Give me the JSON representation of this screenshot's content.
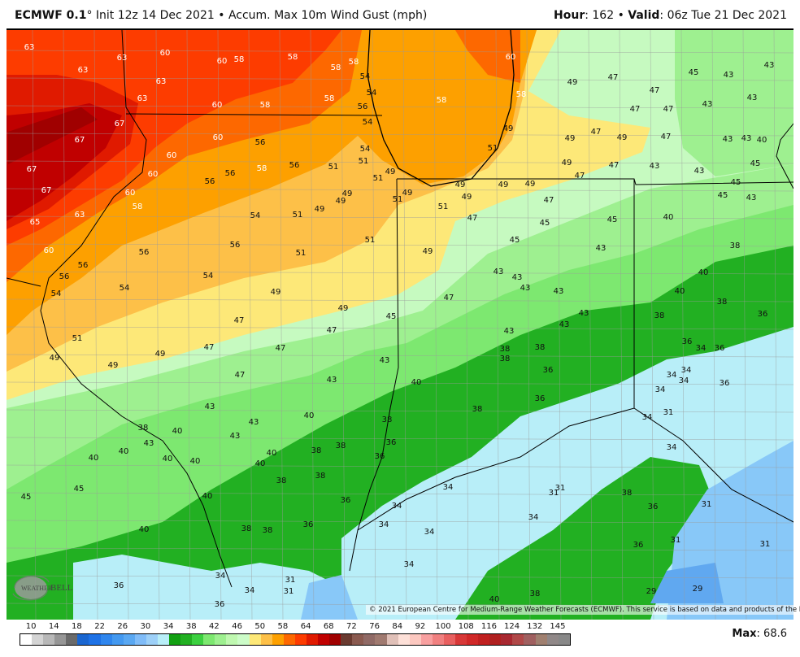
{
  "header": {
    "model": "ECMWF 0.1",
    "degree": "°",
    "description": " Init 12z 14 Dec 2021 • Accum. Max 10m Wind Gust (mph)",
    "hour_label": "Hour",
    "hour_value": ": 162 • ",
    "valid_label": "Valid",
    "valid_value": ": 06z Tue 21 Dec 2021"
  },
  "attribution": "© 2021 European Centre for Medium-Range Weather Forecasts (ECMWF). This service is based on data and products of the ECMWF.",
  "logo": "WeatherBELL Analytics LLC",
  "legend": {
    "tick_labels": [
      "10",
      "14",
      "18",
      "22",
      "26",
      "30",
      "34",
      "38",
      "42",
      "46",
      "50",
      "58",
      "64",
      "68",
      "72",
      "76",
      "84",
      "92",
      "100",
      "108",
      "116",
      "124",
      "132",
      "145"
    ],
    "colors": [
      "#ffffff",
      "#d4d4d4",
      "#b8b8b8",
      "#969696",
      "#6a6a6a",
      "#1a66d0",
      "#1e72e6",
      "#2f86ee",
      "#4499f0",
      "#5aa8f2",
      "#80bcf8",
      "#9dd0f8",
      "#b8eef8",
      "#12a012",
      "#22b022",
      "#3cd040",
      "#7de870",
      "#9ef090",
      "#bff8b0",
      "#ccfcc8",
      "#fde878",
      "#fdc048",
      "#fda000",
      "#fd6800",
      "#fd3c00",
      "#e01a00",
      "#c00000",
      "#a00000",
      "#6a3a30",
      "#8a5a50",
      "#906a66",
      "#a07a70",
      "#e0c0b8",
      "#fde0d8",
      "#fcc8c0",
      "#f8a0a0",
      "#f08080",
      "#e86060",
      "#d83838",
      "#d02828",
      "#c02020",
      "#b02020",
      "#a82830",
      "#b04848",
      "#a06060",
      "#a08070",
      "#908888",
      "#888888"
    ]
  },
  "max": {
    "label": "Max",
    "value": ": 68.6"
  },
  "map_colors": {
    "ge46": "#c6fac0",
    "ge48": "#fde878",
    "ge52": "#fdc048",
    "ge56": "#fda000",
    "ge60": "#fd6800",
    "ge62": "#fd3c00",
    "ge64": "#e01a00",
    "ge66": "#c00000",
    "ge68": "#a00000",
    "base43": "#9ef090",
    "le42": "#7de870",
    "le38": "#22b022",
    "le34": "#b8eef8",
    "le31": "#88c8f8",
    "le29": "#60a8f0",
    "borders": "#000000",
    "counties": "#9a9a9a"
  },
  "value_labels": [
    "63",
    "63",
    "63",
    "60",
    "60",
    "58",
    "58",
    "58",
    "58",
    "54",
    "54",
    "56",
    "54",
    "63",
    "63",
    "60",
    "58",
    "58",
    "58",
    "60",
    "58",
    "49",
    "47",
    "47",
    "45",
    "43",
    "43",
    "43",
    "43",
    "47",
    "47",
    "67",
    "67",
    "67",
    "67",
    "65",
    "60",
    "60",
    "60",
    "60",
    "56",
    "56",
    "56",
    "58",
    "56",
    "51",
    "54",
    "51",
    "51",
    "49",
    "49",
    "49",
    "51",
    "49",
    "51",
    "49",
    "49",
    "49",
    "49",
    "51",
    "49",
    "49",
    "47",
    "49",
    "47",
    "43",
    "43",
    "40",
    "49",
    "47",
    "47",
    "43",
    "43",
    "45",
    "45",
    "45",
    "43",
    "58",
    "63",
    "54",
    "51",
    "49",
    "51",
    "47",
    "47",
    "45",
    "45",
    "40",
    "38",
    "60",
    "56",
    "56",
    "56",
    "51",
    "49",
    "45",
    "43",
    "40",
    "56",
    "54",
    "54",
    "54",
    "49",
    "43",
    "43",
    "43",
    "43",
    "40",
    "38",
    "47",
    "49",
    "45",
    "43",
    "38",
    "36",
    "51",
    "47",
    "47",
    "43",
    "43",
    "49",
    "49",
    "49",
    "47",
    "47",
    "38",
    "38",
    "38",
    "36",
    "34",
    "36",
    "43",
    "36",
    "34",
    "34",
    "34",
    "36",
    "47",
    "43",
    "40",
    "36",
    "34",
    "31",
    "34",
    "43",
    "38",
    "43",
    "40",
    "38",
    "38",
    "40",
    "43",
    "36",
    "43",
    "40",
    "40",
    "40",
    "40",
    "40",
    "40",
    "38",
    "38",
    "36",
    "34",
    "38",
    "38",
    "34",
    "31",
    "31",
    "45",
    "45",
    "40",
    "36",
    "34",
    "34",
    "38",
    "36",
    "31",
    "40",
    "38",
    "38",
    "36",
    "34",
    "34",
    "31",
    "31",
    "36",
    "34",
    "34",
    "31",
    "31",
    "34",
    "36",
    "36",
    "29",
    "29",
    "40",
    "38"
  ]
}
